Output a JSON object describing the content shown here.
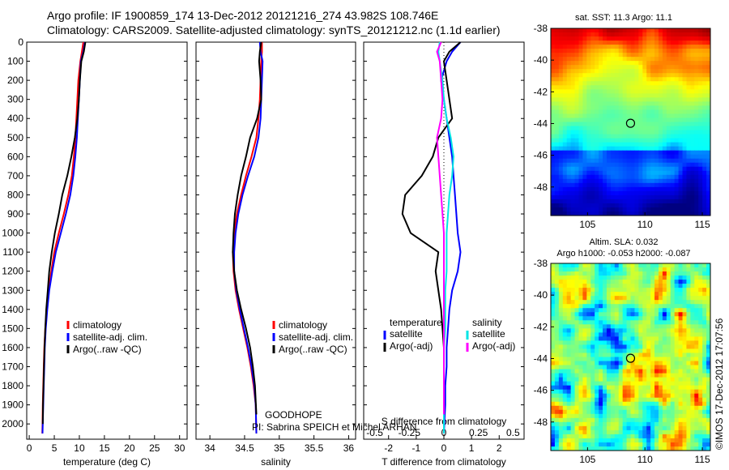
{
  "header": {
    "line1": "Argo profile: IF 1900859_174 13-Dec-2012 20121216_274 43.982S 108.746E",
    "line2": "Climatology: CARS2009. Satellite-adjusted climatology: synTS_20121212.nc (1.1d earlier)"
  },
  "side_label": "©IMOS 17-Dec-2012 17:07:56",
  "colors": {
    "climatology": "#ff0000",
    "satellite": "#0000ff",
    "argo": "#000000",
    "salinity_satellite": "#00e5e5",
    "salinity_argo": "#ff00ff"
  },
  "chart_data": [
    {
      "type": "line",
      "panel": "temperature",
      "xlabel": "temperature (deg C)",
      "ylabel": "",
      "xlim": [
        -0.5,
        31.5
      ],
      "ylim": [
        2080,
        0
      ],
      "xticks": [
        "0",
        "5",
        "10",
        "15",
        "20",
        "25",
        "30"
      ],
      "yticks": [
        "0",
        "100",
        "200",
        "300",
        "400",
        "500",
        "600",
        "700",
        "800",
        "900",
        "1000",
        "1100",
        "1200",
        "1300",
        "1400",
        "1500",
        "1600",
        "1700",
        "1800",
        "1900",
        "2000"
      ],
      "legend": [
        "climatology",
        "satellite-adj. clim.",
        "Argo(..raw -QC)"
      ],
      "series": [
        {
          "name": "climatology",
          "color": "#ff0000",
          "x": [
            10.8,
            10.5,
            10.2,
            9.8,
            9.6,
            9.4,
            9.2,
            8.9,
            8.5,
            7.8,
            6.9,
            5.9,
            5.0,
            4.4,
            3.9,
            3.5,
            3.2,
            3.0,
            2.9,
            2.8,
            2.7,
            2.65,
            2.6
          ],
          "y": [
            0,
            50,
            100,
            200,
            300,
            400,
            500,
            600,
            700,
            800,
            900,
            1000,
            1100,
            1200,
            1300,
            1400,
            1500,
            1600,
            1700,
            1800,
            1900,
            2000,
            2050
          ]
        },
        {
          "name": "satellite-adj. clim.",
          "color": "#0000ff",
          "x": [
            11.1,
            10.8,
            10.3,
            10.1,
            9.9,
            9.7,
            9.5,
            9.2,
            8.8,
            8.2,
            7.3,
            6.3,
            5.3,
            4.6,
            4.0,
            3.6,
            3.3,
            3.1,
            3.0,
            2.9,
            2.8,
            2.7,
            2.65
          ],
          "y": [
            0,
            50,
            100,
            200,
            300,
            400,
            500,
            600,
            700,
            800,
            900,
            1000,
            1100,
            1200,
            1300,
            1400,
            1500,
            1600,
            1700,
            1800,
            1900,
            2000,
            2050
          ]
        },
        {
          "name": "Argo(..raw -QC)",
          "color": "#000000",
          "x": [
            11.2,
            10.9,
            10.4,
            10.1,
            9.9,
            9.6,
            9.1,
            8.4,
            7.6,
            6.6,
            5.9,
            5.1,
            4.5,
            4.0,
            3.7,
            3.4,
            3.2,
            3.05,
            2.95,
            2.85,
            2.75,
            2.7
          ],
          "y": [
            0,
            50,
            100,
            200,
            300,
            400,
            500,
            600,
            700,
            800,
            900,
            1000,
            1100,
            1200,
            1300,
            1400,
            1500,
            1600,
            1700,
            1800,
            1900,
            2000
          ]
        }
      ]
    },
    {
      "type": "line",
      "panel": "salinity",
      "xlabel": "salinity",
      "ylabel": "",
      "xlim": [
        33.8,
        36.1
      ],
      "ylim": [
        2080,
        0
      ],
      "xticks": [
        "34",
        "34.5",
        "35",
        "35.5",
        "36"
      ],
      "legend": [
        "climatology",
        "satellite-adj. clim.",
        "Argo(..raw -QC)"
      ],
      "annotation": [
        "GOODHOPE",
        "PI: Sabrina SPEICH et Michel ARHAN"
      ],
      "series": [
        {
          "name": "climatology",
          "color": "#ff0000",
          "x": [
            34.75,
            34.75,
            34.74,
            34.73,
            34.72,
            34.7,
            34.67,
            34.6,
            34.52,
            34.45,
            34.39,
            34.35,
            34.33,
            34.34,
            34.37,
            34.42,
            34.48,
            34.54,
            34.59,
            34.63,
            34.66,
            34.67
          ],
          "y": [
            0,
            50,
            100,
            200,
            300,
            400,
            500,
            600,
            700,
            800,
            900,
            1000,
            1100,
            1200,
            1300,
            1400,
            1500,
            1600,
            1700,
            1800,
            1900,
            2050
          ]
        },
        {
          "name": "satellite-adj. clim.",
          "color": "#0000ff",
          "x": [
            34.72,
            34.73,
            34.76,
            34.75,
            34.74,
            34.73,
            34.7,
            34.64,
            34.55,
            34.47,
            34.41,
            34.37,
            34.35,
            34.35,
            34.38,
            34.43,
            34.49,
            34.55,
            34.6,
            34.64,
            34.66,
            34.67
          ],
          "y": [
            0,
            50,
            100,
            200,
            300,
            400,
            500,
            600,
            700,
            800,
            900,
            1000,
            1100,
            1200,
            1300,
            1400,
            1500,
            1600,
            1700,
            1800,
            1900,
            2050
          ]
        },
        {
          "name": "Argo(..raw -QC)",
          "color": "#000000",
          "x": [
            34.74,
            34.72,
            34.71,
            34.73,
            34.74,
            34.68,
            34.58,
            34.52,
            34.45,
            34.4,
            34.36,
            34.34,
            34.33,
            34.35,
            34.39,
            34.45,
            34.52,
            34.58,
            34.62,
            34.65,
            34.67
          ],
          "y": [
            0,
            50,
            100,
            200,
            300,
            400,
            500,
            600,
            700,
            800,
            900,
            1000,
            1100,
            1200,
            1300,
            1400,
            1500,
            1600,
            1700,
            1800,
            1950
          ]
        }
      ]
    },
    {
      "type": "line",
      "panel": "difference",
      "xlabel": "T difference from climatology",
      "xlabel_top": "S difference from climatology",
      "xlim": [
        -2.9,
        2.9
      ],
      "xlim_salinity": [
        -0.58,
        0.58
      ],
      "ylim": [
        2080,
        0
      ],
      "xticks": [
        "-2",
        "-1",
        "0",
        "1",
        "2"
      ],
      "xticks_salinity": [
        "-0.5",
        "-0.25",
        "0",
        "0.25",
        "0.5"
      ],
      "legend_headers": [
        "temperature",
        "salinity"
      ],
      "legend": [
        "satellite",
        "Argo(-adj)",
        "satellite",
        "Argo(-adj)"
      ],
      "series": [
        {
          "name": "satellite",
          "quantity": "temperature",
          "color": "#0000ff",
          "x": [
            0.6,
            0.3,
            0.1,
            -0.1,
            0.0,
            0.1,
            0.2,
            0.3,
            0.35,
            0.4,
            0.45,
            0.5,
            0.6,
            0.5,
            0.3,
            0.2,
            0.15,
            0.1,
            0.1,
            0.05,
            0.05,
            0.0
          ],
          "y": [
            0,
            50,
            100,
            200,
            300,
            400,
            500,
            600,
            700,
            800,
            900,
            1000,
            1100,
            1200,
            1300,
            1400,
            1500,
            1600,
            1700,
            1800,
            1900,
            2050
          ]
        },
        {
          "name": "Argo(-adj)",
          "quantity": "temperature",
          "color": "#000000",
          "x": [
            0.6,
            0.2,
            0.0,
            0.1,
            0.2,
            0.3,
            -0.2,
            -0.4,
            -0.8,
            -1.4,
            -1.5,
            -1.2,
            -0.2,
            -0.3,
            -0.2,
            -0.1,
            -0.05,
            0.0,
            0.0,
            0.0,
            0.0,
            0.0
          ],
          "y": [
            0,
            50,
            100,
            200,
            300,
            400,
            500,
            600,
            700,
            800,
            900,
            1000,
            1100,
            1200,
            1300,
            1400,
            1500,
            1600,
            1700,
            1800,
            1900,
            2000
          ]
        },
        {
          "name": "satellite",
          "quantity": "salinity",
          "color": "#00e5e5",
          "x": [
            -0.03,
            -0.04,
            -0.03,
            -0.01,
            0.0,
            0.02,
            0.05,
            0.07,
            0.06,
            0.04,
            0.03,
            0.02,
            0.02,
            0.02,
            0.01,
            0.01,
            0.01,
            0.0,
            0.0,
            0.0,
            0.0,
            0.0
          ],
          "y": [
            0,
            50,
            100,
            200,
            300,
            400,
            500,
            600,
            700,
            800,
            900,
            1000,
            1100,
            1200,
            1300,
            1400,
            1500,
            1600,
            1700,
            1800,
            1900,
            2050
          ]
        },
        {
          "name": "Argo(-adj)",
          "quantity": "salinity",
          "color": "#ff00ff",
          "x": [
            -0.02,
            -0.05,
            -0.03,
            -0.02,
            -0.01,
            -0.02,
            -0.05,
            -0.04,
            -0.03,
            -0.02,
            -0.01,
            0.0,
            0.0,
            0.0,
            0.0,
            0.0,
            0.0,
            0.0,
            0.0,
            0.0,
            0.0
          ],
          "y": [
            0,
            50,
            100,
            200,
            300,
            400,
            500,
            600,
            700,
            800,
            900,
            1000,
            1100,
            1200,
            1300,
            1400,
            1500,
            1600,
            1700,
            1800,
            1950
          ]
        }
      ]
    },
    {
      "type": "heatmap",
      "panel": "sst-map",
      "title": "sat. SST: 11.3 Argo: 11.1",
      "xlim": [
        101.8,
        115.7
      ],
      "ylim": [
        -49.8,
        -38
      ],
      "xticks": [
        "105",
        "110",
        "115"
      ],
      "yticks": [
        "-38",
        "-40",
        "-42",
        "-44",
        "-46",
        "-48"
      ],
      "profile_location": {
        "lon": 108.746,
        "lat": -43.982
      }
    },
    {
      "type": "heatmap",
      "panel": "sla-map",
      "title": [
        "Altim. SLA: 0.032",
        "Argo h1000: -0.053 h2000: -0.087"
      ],
      "xlim": [
        101.8,
        115.7
      ],
      "ylim": [
        -49.8,
        -38
      ],
      "xticks": [
        "105",
        "110",
        "115"
      ],
      "yticks": [
        "-38",
        "-40",
        "-42",
        "-44",
        "-46",
        "-48"
      ],
      "profile_location": {
        "lon": 108.746,
        "lat": -43.982
      }
    }
  ]
}
